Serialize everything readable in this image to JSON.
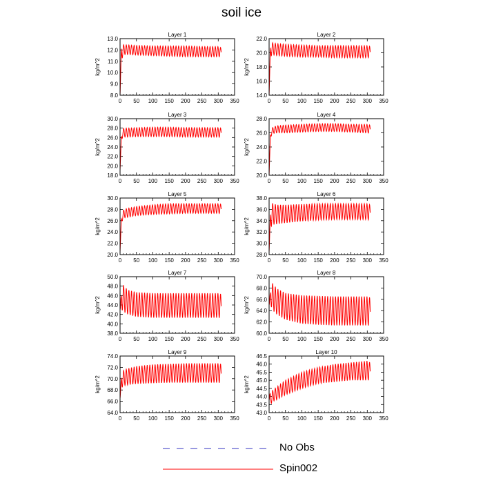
{
  "figure": {
    "title": "soil ice",
    "legend": [
      {
        "name": "No Obs",
        "color": "#3030c0",
        "dash": true
      },
      {
        "name": "Spin002",
        "color": "#ff0000",
        "dash": false
      }
    ]
  },
  "chart_data": [
    {
      "type": "line",
      "title": "Layer 1",
      "ylabel": "kg/m^2",
      "xlim": [
        0,
        350
      ],
      "ylim": [
        8.0,
        13.0
      ],
      "xticks": [
        0,
        50,
        100,
        150,
        200,
        250,
        300,
        350
      ],
      "yticks": [
        "8.0",
        "9.0",
        "10.0",
        "11.0",
        "12.0",
        "13.0"
      ],
      "series": [
        {
          "name": "Spin002",
          "color": "#ff0000",
          "x": [
            0,
            4,
            8,
            12,
            24,
            50,
            100,
            150,
            200,
            250,
            300,
            309
          ],
          "upper": [
            8.0,
            12.3,
            12.5,
            12.45,
            12.45,
            12.4,
            12.35,
            12.35,
            12.35,
            12.3,
            12.3,
            12.2
          ],
          "lower": [
            8.0,
            11.0,
            11.4,
            11.6,
            11.6,
            11.55,
            11.5,
            11.45,
            11.4,
            11.4,
            11.4,
            11.4
          ]
        }
      ]
    },
    {
      "type": "line",
      "title": "Layer 2",
      "ylabel": "kg/m^2",
      "xlim": [
        0,
        350
      ],
      "ylim": [
        14.0,
        22.0
      ],
      "xticks": [
        0,
        50,
        100,
        150,
        200,
        250,
        300,
        350
      ],
      "yticks": [
        "14.0",
        "16.0",
        "18.0",
        "20.0",
        "22.0"
      ],
      "series": [
        {
          "name": "Spin002",
          "color": "#ff0000",
          "x": [
            0,
            4,
            8,
            12,
            24,
            50,
            100,
            150,
            200,
            250,
            300,
            309
          ],
          "upper": [
            14.0,
            21.0,
            21.5,
            21.4,
            21.3,
            21.2,
            21.1,
            21.0,
            21.0,
            21.0,
            21.0,
            20.9
          ],
          "lower": [
            14.0,
            19.0,
            19.8,
            19.7,
            19.6,
            19.5,
            19.4,
            19.4,
            19.3,
            19.3,
            19.3,
            19.3
          ]
        }
      ]
    },
    {
      "type": "line",
      "title": "Layer 3",
      "ylabel": "kg/m^2",
      "xlim": [
        0,
        350
      ],
      "ylim": [
        18.0,
        30.0
      ],
      "xticks": [
        0,
        50,
        100,
        150,
        200,
        250,
        300,
        350
      ],
      "yticks": [
        "18.0",
        "20.0",
        "22.0",
        "24.0",
        "26.0",
        "28.0",
        "30.0"
      ],
      "series": [
        {
          "name": "Spin002",
          "color": "#ff0000",
          "x": [
            0,
            4,
            8,
            12,
            24,
            50,
            100,
            150,
            200,
            250,
            300,
            309
          ],
          "upper": [
            19.0,
            26.5,
            27.8,
            28.0,
            28.0,
            28.1,
            28.2,
            28.2,
            28.1,
            28.1,
            28.1,
            28.0
          ],
          "lower": [
            19.0,
            25.0,
            26.2,
            26.1,
            26.1,
            26.2,
            26.2,
            26.2,
            26.1,
            26.1,
            26.1,
            26.0
          ]
        }
      ]
    },
    {
      "type": "line",
      "title": "Layer 4",
      "ylabel": "kg/m^2",
      "xlim": [
        0,
        350
      ],
      "ylim": [
        20.0,
        28.0
      ],
      "xticks": [
        0,
        50,
        100,
        150,
        200,
        250,
        300,
        350
      ],
      "yticks": [
        "20.0",
        "22.0",
        "24.0",
        "26.0",
        "28.0"
      ],
      "series": [
        {
          "name": "Spin002",
          "color": "#ff0000",
          "x": [
            0,
            4,
            8,
            12,
            24,
            50,
            100,
            150,
            200,
            250,
            300,
            309
          ],
          "upper": [
            20.0,
            25.8,
            26.6,
            26.8,
            27.0,
            27.1,
            27.2,
            27.3,
            27.3,
            27.2,
            27.2,
            27.1
          ],
          "lower": [
            20.0,
            25.0,
            25.8,
            25.9,
            26.0,
            26.0,
            26.1,
            26.2,
            26.2,
            26.1,
            26.0,
            25.9
          ]
        }
      ]
    },
    {
      "type": "line",
      "title": "Layer 5",
      "ylabel": "kg/m^2",
      "xlim": [
        0,
        350
      ],
      "ylim": [
        20.0,
        30.0
      ],
      "xticks": [
        0,
        50,
        100,
        150,
        200,
        250,
        300,
        350
      ],
      "yticks": [
        "20.0",
        "22.0",
        "24.0",
        "26.0",
        "28.0",
        "30.0"
      ],
      "series": [
        {
          "name": "Spin002",
          "color": "#ff0000",
          "x": [
            0,
            4,
            8,
            12,
            24,
            50,
            100,
            150,
            200,
            250,
            300,
            309
          ],
          "upper": [
            20.5,
            26.5,
            27.5,
            28.0,
            28.2,
            28.5,
            28.8,
            29.0,
            29.0,
            29.0,
            29.0,
            28.9
          ],
          "lower": [
            20.5,
            25.5,
            26.2,
            26.5,
            26.6,
            26.9,
            27.1,
            27.2,
            27.3,
            27.3,
            27.3,
            27.2
          ]
        }
      ]
    },
    {
      "type": "line",
      "title": "Layer 6",
      "ylabel": "kg/m^2",
      "xlim": [
        0,
        350
      ],
      "ylim": [
        28.0,
        38.0
      ],
      "xticks": [
        0,
        50,
        100,
        150,
        200,
        250,
        300,
        350
      ],
      "yticks": [
        "28.0",
        "30.0",
        "32.0",
        "34.0",
        "36.0",
        "38.0"
      ],
      "series": [
        {
          "name": "Spin002",
          "color": "#ff0000",
          "x": [
            0,
            4,
            8,
            12,
            24,
            50,
            100,
            150,
            200,
            250,
            300,
            309
          ],
          "upper": [
            28.5,
            35.5,
            37.3,
            37.0,
            36.8,
            36.8,
            36.9,
            37.0,
            37.0,
            37.0,
            37.0,
            36.8
          ],
          "lower": [
            28.5,
            32.5,
            33.2,
            33.3,
            33.4,
            33.6,
            33.9,
            34.1,
            34.2,
            34.2,
            34.2,
            34.0
          ]
        }
      ]
    },
    {
      "type": "line",
      "title": "Layer 7",
      "ylabel": "kg/m^2",
      "xlim": [
        0,
        350
      ],
      "ylim": [
        38.0,
        50.0
      ],
      "xticks": [
        0,
        50,
        100,
        150,
        200,
        250,
        300,
        350
      ],
      "yticks": [
        "38.0",
        "40.0",
        "42.0",
        "44.0",
        "46.0",
        "48.0",
        "50.0"
      ],
      "series": [
        {
          "name": "Spin002",
          "color": "#ff0000",
          "x": [
            0,
            4,
            8,
            12,
            24,
            50,
            100,
            150,
            200,
            250,
            300,
            309
          ],
          "upper": [
            43.0,
            46.5,
            48.8,
            48.0,
            47.2,
            46.7,
            46.5,
            46.5,
            46.5,
            46.5,
            46.5,
            46.3
          ],
          "lower": [
            43.0,
            42.5,
            43.0,
            42.5,
            42.0,
            41.5,
            41.3,
            41.3,
            41.3,
            41.3,
            41.3,
            41.2
          ]
        }
      ]
    },
    {
      "type": "line",
      "title": "Layer 8",
      "ylabel": "kg/m^2",
      "xlim": [
        0,
        350
      ],
      "ylim": [
        60.0,
        70.0
      ],
      "xticks": [
        0,
        50,
        100,
        150,
        200,
        250,
        300,
        350
      ],
      "yticks": [
        "60.0",
        "62.0",
        "64.0",
        "66.0",
        "68.0",
        "70.0"
      ],
      "series": [
        {
          "name": "Spin002",
          "color": "#ff0000",
          "x": [
            0,
            4,
            8,
            12,
            24,
            50,
            100,
            150,
            200,
            250,
            300,
            309
          ],
          "upper": [
            65.0,
            67.5,
            69.2,
            68.7,
            67.9,
            67.1,
            66.7,
            66.6,
            66.5,
            66.5,
            66.5,
            66.3
          ],
          "lower": [
            65.0,
            65.0,
            64.5,
            64.0,
            63.3,
            62.4,
            61.7,
            61.5,
            61.4,
            61.4,
            61.4,
            61.3
          ]
        }
      ]
    },
    {
      "type": "line",
      "title": "Layer 9",
      "ylabel": "kg/m^2",
      "xlim": [
        0,
        350
      ],
      "ylim": [
        64.0,
        74.0
      ],
      "xticks": [
        0,
        50,
        100,
        150,
        200,
        250,
        300,
        350
      ],
      "yticks": [
        "64.0",
        "66.0",
        "68.0",
        "70.0",
        "72.0",
        "74.0"
      ],
      "series": [
        {
          "name": "Spin002",
          "color": "#ff0000",
          "x": [
            0,
            4,
            8,
            12,
            24,
            50,
            100,
            150,
            200,
            250,
            300,
            309
          ],
          "upper": [
            66.5,
            70.5,
            71.3,
            71.5,
            71.8,
            72.2,
            72.5,
            72.6,
            72.7,
            72.7,
            72.7,
            72.6
          ],
          "lower": [
            66.5,
            68.0,
            68.7,
            68.8,
            68.9,
            69.1,
            69.2,
            69.3,
            69.3,
            69.3,
            69.3,
            69.2
          ]
        }
      ]
    },
    {
      "type": "line",
      "title": "Layer 10",
      "ylabel": "kg/m^2",
      "xlim": [
        0,
        350
      ],
      "ylim": [
        43.0,
        46.5
      ],
      "xticks": [
        0,
        50,
        100,
        150,
        200,
        250,
        300,
        350
      ],
      "yticks": [
        "43.0",
        "43.5",
        "44.0",
        "44.5",
        "45.0",
        "45.5",
        "46.0",
        "46.5"
      ],
      "series": [
        {
          "name": "Spin002",
          "color": "#ff0000",
          "x": [
            0,
            4,
            8,
            12,
            24,
            50,
            100,
            150,
            200,
            250,
            300,
            309
          ],
          "upper": [
            44.1,
            44.2,
            44.3,
            44.4,
            44.6,
            45.0,
            45.5,
            45.8,
            46.0,
            46.1,
            46.2,
            46.1
          ],
          "lower": [
            43.7,
            43.5,
            43.6,
            43.7,
            43.8,
            44.1,
            44.5,
            44.8,
            44.9,
            45.0,
            45.0,
            45.0
          ]
        }
      ]
    }
  ]
}
